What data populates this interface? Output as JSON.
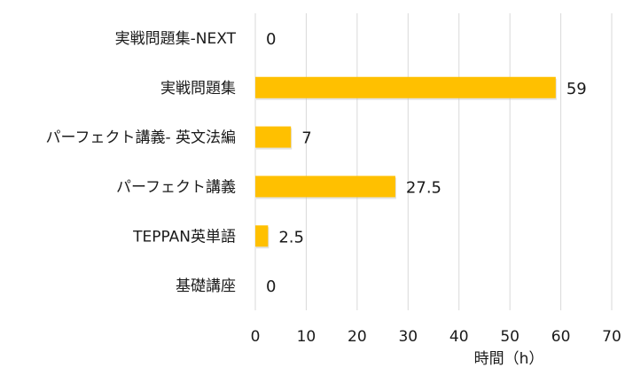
{
  "chart_data": {
    "type": "bar",
    "orientation": "horizontal",
    "categories": [
      "実戦問題集-NEXT",
      "実戦問題集",
      "パーフェクト講義- 英文法編",
      "パーフェクト講義",
      "TEPPAN英単語",
      "基礎講座"
    ],
    "values": [
      0,
      59,
      7,
      27.5,
      2.5,
      0
    ],
    "data_labels": [
      "0",
      "59",
      "7",
      "27.5",
      "2.5",
      "0"
    ],
    "xlabel": "時間（h）",
    "xlim": [
      0,
      70
    ],
    "xticks": [
      0,
      10,
      20,
      30,
      40,
      50,
      60,
      70
    ],
    "grid": "vertical",
    "legend": "none",
    "bar_color": "#FFC000"
  }
}
